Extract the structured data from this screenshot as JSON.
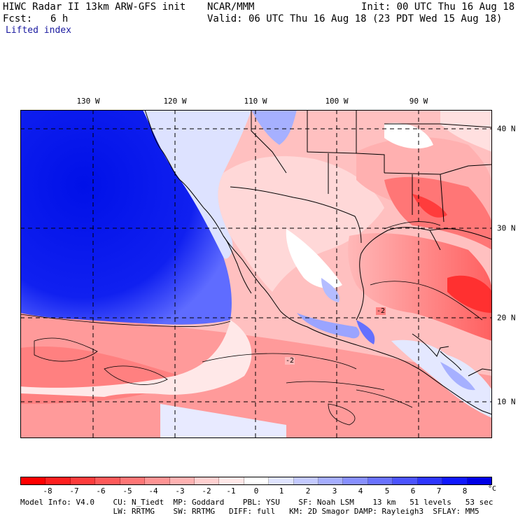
{
  "header": {
    "title": "HIWC Radar II 13km ARW-GFS init",
    "org": "NCAR/MMM",
    "init": "Init: 00 UTC Thu 16 Aug 18",
    "fcst_label": "Fcst:",
    "fcst_value": "6 h",
    "valid": "Valid: 06 UTC Thu 16 Aug 18 (23 PDT Wed 15 Aug 18)",
    "field": "Lifted index"
  },
  "map": {
    "lon_labels": [
      "130 W",
      "120 W",
      "110 W",
      "100 W",
      "90 W"
    ],
    "lat_labels": [
      "40 N",
      "30 N",
      "20 N",
      "10 N"
    ],
    "contour_labels": [
      "-2",
      "-2"
    ]
  },
  "colorbar": {
    "labels": [
      "-8",
      "-7",
      "-6",
      "-5",
      "-4",
      "-3",
      "-2",
      "-1",
      "0",
      "1",
      "2",
      "3",
      "4",
      "5",
      "6",
      "7",
      "8"
    ],
    "unit": "°C",
    "colors": [
      "#ff0000",
      "#ff2020",
      "#ff3c3c",
      "#ff5a5a",
      "#ff7676",
      "#ff9494",
      "#ffb2b2",
      "#ffd0d0",
      "#ffe8e8",
      "#ffffff",
      "#e0e4ff",
      "#c4caff",
      "#a6aeff",
      "#8890ff",
      "#6a72ff",
      "#4c54ff",
      "#2e36ff",
      "#1018ff",
      "#0000e6"
    ]
  },
  "footer": {
    "line1": "Model Info: V4.0    CU: N_Tiedt  MP: Goddard    PBL: YSU    SF: Noah LSM    13 km   51 levels   53 sec",
    "line2": "                    LW: RRTMG    SW: RRTMG   DIFF: full   KM: 2D Smagor DAMP: Rayleigh3  SFLAY: MM5"
  },
  "colors": {
    "ocean_stable": "#0a14f0",
    "unstable": "#ff6464",
    "neutral": "#ffe4e4"
  }
}
